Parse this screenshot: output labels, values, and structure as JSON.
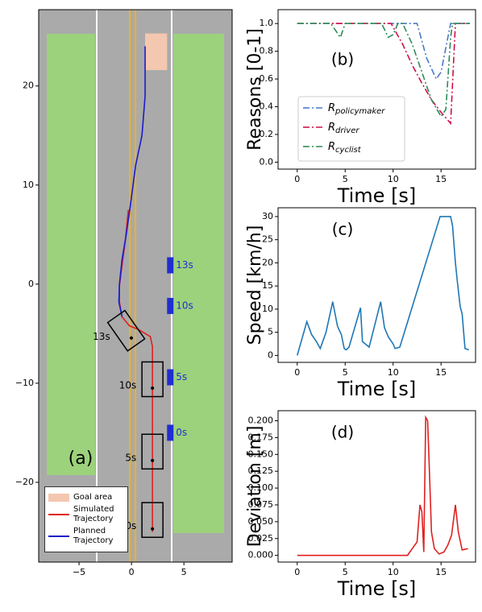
{
  "chart_data": [
    {
      "type": "trajectory",
      "label": "(a)",
      "xlim": [
        -8.85,
        9.6
      ],
      "ylim": [
        -28.05,
        27.7
      ],
      "xticks": [
        {
          "value": -5,
          "label": "−5"
        },
        0,
        5
      ],
      "yticks": [
        {
          "value": -20,
          "label": "−20"
        },
        {
          "value": -10,
          "label": "−10"
        },
        0,
        10,
        20
      ],
      "goal_area": {
        "name": "Goal area",
        "color": "#f4c7b0",
        "x": [
          1.3,
          3.4
        ],
        "y": [
          21.6,
          25.3
        ]
      },
      "series": [
        {
          "name": "Simulated Trajectory",
          "color": "#e02020",
          "x": [
            2,
            2,
            1.8,
            0.7,
            -0.2,
            -0.9,
            -1.15,
            -1.15,
            -0.9,
            -0.6,
            -0.3
          ],
          "values": [
            -25,
            -6.3,
            -5.3,
            -4.6,
            -4.2,
            -3.3,
            -1.8,
            -0.2,
            1.9,
            4.3,
            7.5
          ]
        },
        {
          "name": "Planned Trajectory",
          "color": "#1a1acc",
          "x": [
            -0.9,
            -1.2,
            -1.15,
            -0.9,
            -0.5,
            -0.1,
            0.4,
            1,
            1.3,
            1.3,
            1.3
          ],
          "values": [
            -3.3,
            -1.8,
            0,
            2.5,
            5,
            8,
            12,
            15,
            19,
            22,
            24
          ]
        }
      ],
      "vehicles": {
        "x": [
          2,
          2,
          2,
          -0.5
        ],
        "y": [
          -23.8,
          -16.9,
          -9.6,
          -4.7
        ],
        "headings": [
          0,
          0,
          0,
          35
        ],
        "labels": [
          "0s",
          "5s",
          "10s",
          "13s"
        ]
      },
      "cyclists": {
        "color": "#1f2fd0",
        "x": [
          3.7,
          3.7,
          3.7,
          3.7
        ],
        "y": [
          -15,
          -9.4,
          -2.2,
          1.9
        ],
        "labels": [
          "0s",
          "5s",
          "10s",
          "13s"
        ]
      }
    },
    {
      "type": "line",
      "label": "(b)",
      "ylabel": "Reasons [0-1]",
      "xlabel": "Time [s]",
      "linestyle": "dashdot",
      "xlim": [
        -2,
        18.6
      ],
      "ylim": [
        -0.05,
        1.1
      ],
      "xticks": [
        0,
        5,
        10,
        15
      ],
      "yticks": [
        {
          "value": 0,
          "label": "0.0"
        },
        0.2,
        0.4,
        0.6,
        0.8,
        {
          "value": 1,
          "label": "1.0"
        }
      ],
      "series": [
        {
          "name": "Rpolicymaker",
          "color": "#4a78c8",
          "x": [
            0,
            12.5,
            13.5,
            14.5,
            15,
            16,
            18
          ],
          "values": [
            1,
            1,
            0.75,
            0.6,
            0.65,
            1,
            1
          ]
        },
        {
          "name": "Rdriver",
          "color": "#d0104a",
          "x": [
            0,
            9.8,
            11,
            12,
            13,
            14,
            15,
            16,
            16.5,
            18
          ],
          "values": [
            1,
            1,
            0.85,
            0.7,
            0.57,
            0.45,
            0.36,
            0.28,
            1,
            1
          ]
        },
        {
          "name": "Rcyclist",
          "color": "#2e8b57",
          "x": [
            0,
            3.5,
            4.5,
            5,
            8.8,
            9.5,
            10,
            10.5,
            11,
            12,
            13,
            14,
            15,
            15.5,
            16,
            16.2,
            18
          ],
          "values": [
            1,
            1,
            0.9,
            1,
            1,
            0.9,
            0.92,
            1,
            1,
            0.85,
            0.65,
            0.45,
            0.33,
            0.38,
            0.9,
            1,
            1
          ]
        }
      ]
    },
    {
      "type": "line",
      "label": "(c)",
      "ylabel": "Speed [km/h]",
      "xlabel": "Time [s]",
      "xlim": [
        -2,
        18.6
      ],
      "ylim": [
        -1.5,
        31.9
      ],
      "xticks": [
        0,
        5,
        10,
        15
      ],
      "yticks": [
        0,
        5,
        10,
        15,
        20,
        25,
        30
      ],
      "series": [
        {
          "color": "#1f77b4",
          "x": [
            0,
            1,
            1.5,
            2,
            2.4,
            3,
            3.7,
            4.2,
            4.6,
            4.9,
            5.1,
            5.4,
            6.6,
            6.8,
            7.5,
            8.7,
            9.1,
            9.5,
            10,
            10.2,
            10.7,
            14.9,
            16,
            16.2,
            16.5,
            16.7,
            17,
            17.2,
            17.5,
            17.9
          ],
          "values": [
            0,
            7.3,
            4.5,
            3,
            1.5,
            5,
            11.6,
            6.3,
            4.5,
            1.5,
            1.2,
            1.8,
            10.3,
            3,
            1.8,
            11.6,
            6,
            4,
            2.5,
            1.5,
            1.8,
            30,
            30,
            28,
            20,
            16,
            10.5,
            9,
            1.5,
            1.2
          ]
        }
      ]
    },
    {
      "type": "line",
      "label": "(d)",
      "ylabel": "Deviation [m]",
      "xlabel": "Time [s]",
      "xlim": [
        -2,
        18.6
      ],
      "ylim": [
        -0.01,
        0.215
      ],
      "xticks": [
        0,
        5,
        10,
        15
      ],
      "yticks": [
        {
          "value": 0,
          "label": "0.000"
        },
        {
          "value": 0.025,
          "label": "0.025"
        },
        {
          "value": 0.05,
          "label": "0.050"
        },
        {
          "value": 0.075,
          "label": "0.075"
        },
        {
          "value": 0.1,
          "label": "0.100"
        },
        {
          "value": 0.125,
          "label": "0.125"
        },
        {
          "value": 0.15,
          "label": "0.150"
        },
        {
          "value": 0.175,
          "label": "0.175"
        },
        {
          "value": 0.2,
          "label": "0.200"
        }
      ],
      "series": [
        {
          "color": "#e02020",
          "x": [
            0,
            11.5,
            12,
            12.5,
            12.8,
            13,
            13.2,
            13.4,
            13.6,
            13.8,
            14,
            14.3,
            14.8,
            15.3,
            15.7,
            16.1,
            16.5,
            16.8,
            17.2,
            17.8
          ],
          "values": [
            0,
            0,
            0.01,
            0.02,
            0.075,
            0.065,
            0.005,
            0.205,
            0.2,
            0.12,
            0.035,
            0.01,
            0.002,
            0.005,
            0.015,
            0.03,
            0.075,
            0.035,
            0.008,
            0.01
          ]
        }
      ]
    }
  ]
}
